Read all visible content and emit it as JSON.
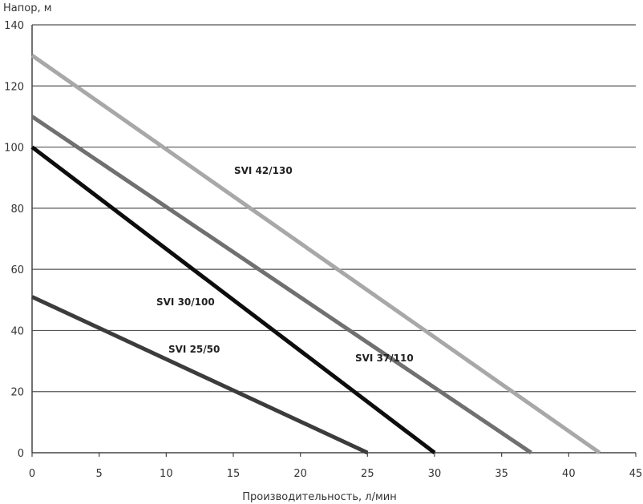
{
  "chart_data": {
    "type": "line",
    "xlabel": "Производительность, л/мин",
    "ylabel": "Напор, м",
    "xlim": [
      0,
      45
    ],
    "ylim": [
      0,
      140
    ],
    "xticks": [
      0,
      5,
      10,
      15,
      20,
      25,
      30,
      35,
      40,
      45
    ],
    "yticks": [
      0,
      20,
      40,
      60,
      80,
      100,
      120,
      140
    ],
    "grid": "horizontal",
    "legend": "none",
    "series": [
      {
        "name": "SVI 25/50",
        "color": "#3c3c3c",
        "x": [
          0,
          25
        ],
        "y": [
          51,
          0
        ]
      },
      {
        "name": "SVI 30/100",
        "color": "#0d0d0d",
        "x": [
          0,
          30
        ],
        "y": [
          100,
          0
        ]
      },
      {
        "name": "SVI 37/110",
        "color": "#707070",
        "x": [
          0,
          37.2
        ],
        "y": [
          110,
          0
        ]
      },
      {
        "name": "SVI 42/130",
        "color": "#a8a8a8",
        "x": [
          0,
          42.3
        ],
        "y": [
          130,
          0
        ]
      }
    ]
  }
}
